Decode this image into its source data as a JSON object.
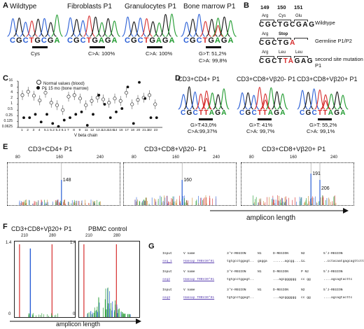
{
  "figure": {
    "panel_labels": {
      "A": "A",
      "B": "B",
      "C": "C",
      "D": "D",
      "E": "E",
      "F": "F",
      "G": "G"
    },
    "panelA": {
      "items": [
        {
          "title": "Wildtype",
          "seq": "CGCTGCGA",
          "caption": "Cys"
        },
        {
          "title": "Fibroblasts P1",
          "seq": "CGCTGAGA",
          "caption": "C>A: 100%"
        },
        {
          "title": "Granulocytes P1",
          "seq": "CGCTGAGA",
          "caption": "C>A: 100%"
        },
        {
          "title": "Bone marrow P1",
          "seq": "CGCTGAGA",
          "caption1": "G>T: 51,2%",
          "caption2": "C>A: 99,8%",
          "overlay_base": "T"
        }
      ]
    },
    "panelB": {
      "codons": [
        "149",
        "150",
        "151"
      ],
      "rows": [
        {
          "aa": [
            "Arg",
            "Cys",
            "Glu"
          ],
          "seq": "CGCTGCGAG",
          "label": "Wildtype"
        },
        {
          "aa": [
            "Arg",
            "Stop",
            ""
          ],
          "seq": "CGCTGA",
          "label": "Germline P1/P2"
        },
        {
          "aa": [
            "Arg",
            "Leu",
            "Leu"
          ],
          "seq": "CGCTTAGAG",
          "label": "second site mutation P1"
        }
      ]
    },
    "panelC": {
      "ylabel": "% of CD8+ T cells",
      "xlabel": "V beta chain",
      "legend": [
        "Normal values (blood)",
        "P1 15 mo (bone marrow)"
      ],
      "yticks": [
        "16",
        "8",
        "4",
        "2",
        "1",
        "0.5",
        "0.25",
        "0.125",
        "0.0625"
      ],
      "xticks": [
        "1",
        "2",
        "3",
        "4",
        "5.1",
        "5.2",
        "5.3",
        "6.1",
        "7",
        "8",
        "9",
        "11",
        "12",
        "13.1",
        "13.2",
        "13.6",
        "14",
        "16",
        "17",
        "18",
        "20",
        "21.3",
        "22",
        "23"
      ]
    },
    "chart_data": {
      "type": "scatter",
      "title": "",
      "xlabel": "V beta chain",
      "ylabel": "% of CD8+ T cells",
      "yscale": "log2",
      "ylim": [
        0.0625,
        16
      ],
      "categories": [
        "1",
        "2",
        "3",
        "4",
        "5.1",
        "5.2",
        "5.3",
        "6.1",
        "7",
        "8",
        "9",
        "11",
        "12",
        "13.1",
        "13.2",
        "13.6",
        "14",
        "16",
        "17",
        "18",
        "20",
        "21.3",
        "22",
        "23"
      ],
      "series": [
        {
          "name": "Normal values (blood)",
          "values": [
            3,
            4.5,
            2.8,
            1.6,
            4,
            1.2,
            0.9,
            0.5,
            2.5,
            3,
            2,
            0.9,
            1.5,
            2.2,
            1.8,
            1.2,
            2,
            1.5,
            4,
            1,
            1.7,
            2.2,
            3,
            1
          ]
        },
        {
          "name": "P1 15 mo (bone marrow)",
          "values": [
            0.2,
            0.2,
            0.3,
            0.12,
            0.3,
            0.1,
            0.07,
            0.15,
            0.2,
            0.3,
            0.4,
            0.08,
            0.3,
            3,
            1,
            0.2,
            0.4,
            0.6,
            8,
            0.1,
            14,
            2,
            0.2,
            0.2
          ]
        }
      ]
    },
    "panelD": {
      "items": [
        {
          "title": "CD3+CD4+ P1",
          "seq": "CGCTTAGA",
          "caption1": "G>T:43,0%",
          "caption2": "C>A:99,37%"
        },
        {
          "title": "CD3+CD8+Vβ20- P1",
          "seq": "CGCTTAGA",
          "caption1": "G>T: 41%",
          "caption2": "C>A: 99,7%"
        },
        {
          "title": "CD3+CD8+Vβ20+ P1",
          "seq": "CGCTTAGA",
          "caption1": "G>T: 55,2%",
          "caption2": "C>A: 99,1%"
        }
      ]
    },
    "panelE": {
      "items": [
        {
          "title": "CD3+CD4+ P1",
          "ticks": [
            "80",
            "160",
            "240"
          ],
          "peaks": [
            "148"
          ]
        },
        {
          "title": "CD3+CD8+Vβ20- P1",
          "ticks": [
            "80",
            "160",
            "240"
          ],
          "peaks": [
            "160"
          ]
        },
        {
          "title": "CD3+CD8+Vβ20+ P1",
          "ticks": [
            "80",
            "160",
            "240"
          ],
          "peaks": [
            "191",
            "206"
          ]
        }
      ],
      "xlabel": "amplicon length"
    },
    "panelF": {
      "items": [
        {
          "title": "CD3+CD8+Vβ20+ P1",
          "ticks": [
            "210",
            "280"
          ],
          "y_top": "1.4",
          "y_bottom": "0"
        },
        {
          "title": "PBMC control",
          "ticks": [
            "210",
            "280"
          ],
          "y_top": "1.4",
          "y_bottom": "0"
        }
      ],
      "xlabel": "amplicon length"
    },
    "panelG": {
      "rows": [
        {
          "c0": "Input",
          "c1": "V name",
          "c2": "3'V-REGION",
          "c3": "N1",
          "c4": "D-REGION",
          "c5": "N2",
          "c6": "5'J-REGION"
        },
        {
          "c0": "seq_1",
          "c1": "Homsap TRBV30*01",
          "c2": "tgtgcctggagt..",
          "c3": "gagga",
          "c4": "......agcgg......",
          "c5": "tc",
          "c6": "..cctacaatgagcagttcttc"
        },
        {
          "c0": "Input",
          "c1": "V name",
          "c2": "3'V-REGION",
          "c3": "N1",
          "c4": "D-REGION",
          "c5": "P N2",
          "c6": "5'J-REGION"
        },
        {
          "c0": "seq2",
          "c1": "Homsap TRBV30*01",
          "c2": "tgtgcctggagt..",
          "c3": "",
          "c4": "...agcgggggg",
          "c5": "cc gg",
          "c6": "....agcagtacttc"
        },
        {
          "c0": "Input",
          "c1": "V name",
          "c2": "3'V-REGION",
          "c3": "N1",
          "c4": "D-REGION",
          "c5": "N2",
          "c6": "5'J-REGION"
        },
        {
          "c0": "seq3",
          "c1": "Homsap TRBV30*01",
          "c2": "tgtgcctggagt..",
          "c3": "",
          "c4": "...agcgggggg",
          "c5": "cc gg",
          "c6": "....agcagtacttc"
        }
      ]
    },
    "colors": {
      "A": "#1f9a2e",
      "C": "#2a5fd6",
      "G": "#111111",
      "T": "#d62d2d"
    }
  }
}
